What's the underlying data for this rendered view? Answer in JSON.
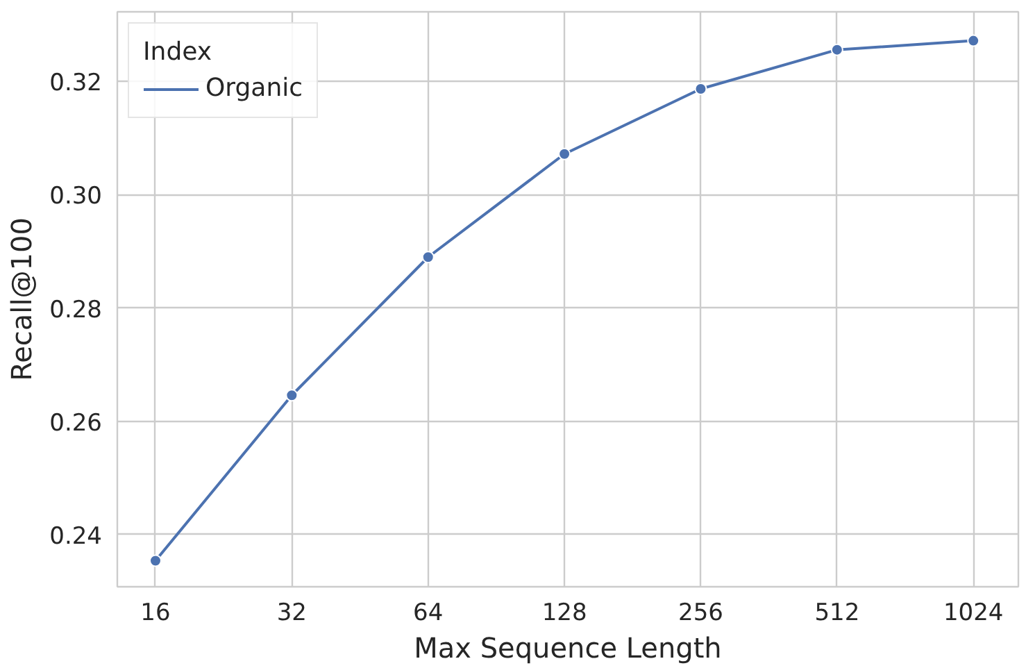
{
  "chart_data": {
    "type": "line",
    "xlabel": "Max Sequence Length",
    "ylabel": "Recall@100",
    "legend_title": "Index",
    "categories": [
      "16",
      "32",
      "64",
      "128",
      "256",
      "512",
      "1024"
    ],
    "series": [
      {
        "name": "Organic",
        "color": "#4c72b0",
        "values": [
          0.2354,
          0.2646,
          0.289,
          0.3072,
          0.3187,
          0.3256,
          0.3272
        ]
      }
    ],
    "ylim": [
      0.2308,
      0.3323
    ],
    "yticks": [
      0.24,
      0.26,
      0.28,
      {
        "value": 0.3,
        "label": "0.30"
      },
      0.32
    ],
    "grid": true,
    "legend": "top left",
    "marker": "circle",
    "line_style": "solid"
  }
}
